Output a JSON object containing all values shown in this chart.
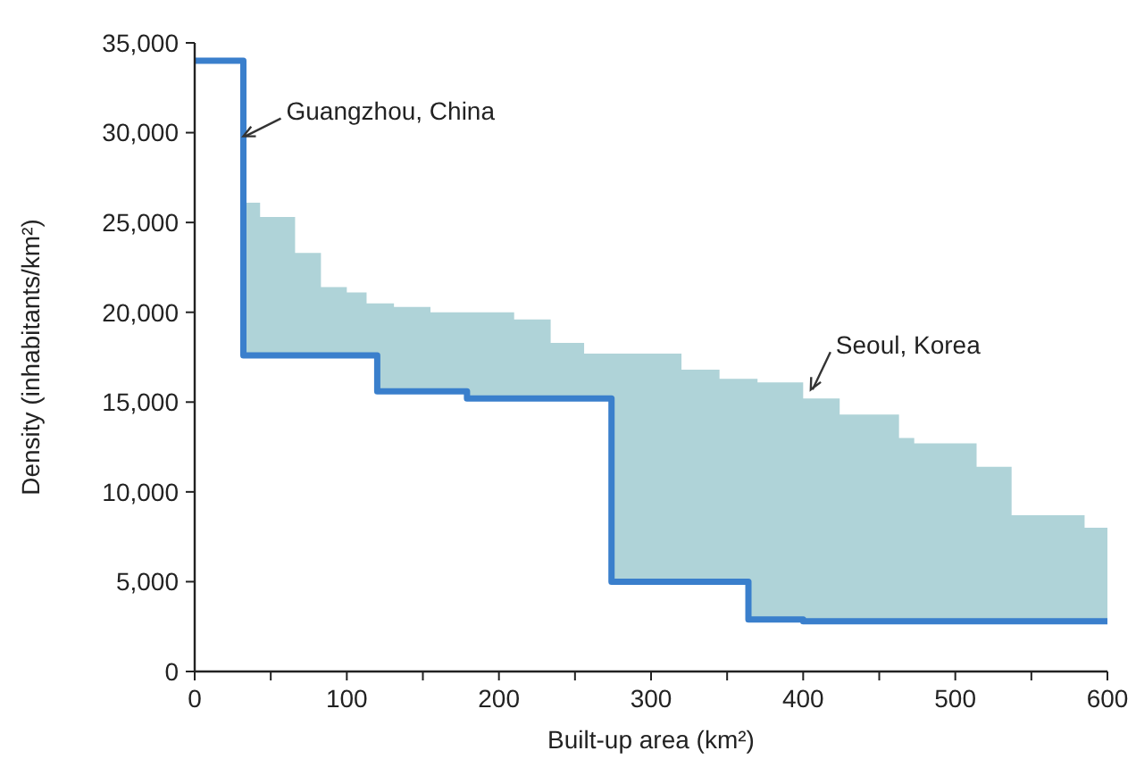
{
  "chart_data": {
    "type": "step",
    "xlabel": "Built-up area (km²)",
    "ylabel": "Density (inhabitants/km²)",
    "xlim": [
      0,
      600
    ],
    "xticks": [
      0,
      {
        "value": 50,
        "label": null
      },
      100,
      {
        "value": 150,
        "label": null
      },
      200,
      {
        "value": 250,
        "label": null
      },
      300,
      {
        "value": 350,
        "label": null
      },
      400,
      {
        "value": 450,
        "label": null
      },
      500,
      {
        "value": 550,
        "label": null
      },
      600
    ],
    "ylim": [
      0,
      35000
    ],
    "yticks": [
      0,
      {
        "value": 5000,
        "label": "5,000"
      },
      {
        "value": 10000,
        "label": "10,000"
      },
      {
        "value": 15000,
        "label": "15,000"
      },
      {
        "value": 20000,
        "label": "20,000"
      },
      {
        "value": 25000,
        "label": "25,000"
      },
      {
        "value": 30000,
        "label": "30,000"
      },
      {
        "value": 35000,
        "label": "35,000"
      }
    ],
    "grid": false,
    "series": [
      {
        "type": "area",
        "color": "#afd3d8",
        "x": [
          32,
          43,
          66,
          83,
          100,
          113,
          120,
          131,
          155,
          179,
          210,
          234,
          256,
          274,
          320,
          345,
          364,
          370,
          400,
          424,
          463,
          473,
          514,
          537,
          585,
          600
        ],
        "values": [
          26100,
          25300,
          23300,
          21400,
          21100,
          20500,
          20500,
          20300,
          20000,
          20000,
          19600,
          18300,
          17700,
          17700,
          16800,
          16300,
          16300,
          16100,
          15200,
          14300,
          13000,
          12700,
          11400,
          8700,
          8000,
          8000
        ]
      },
      {
        "color": "#3a7fcc",
        "x": [
          0,
          32,
          120,
          179,
          274,
          364,
          400,
          600
        ],
        "values": [
          34000,
          17600,
          15600,
          15200,
          5000,
          2900,
          2800,
          2800
        ]
      }
    ],
    "annotations": [
      {
        "text": "Guangzhou, China",
        "x": 32,
        "y": 29800
      },
      {
        "text": "Seoul, Korea",
        "x": 405,
        "y": 15700
      }
    ]
  }
}
